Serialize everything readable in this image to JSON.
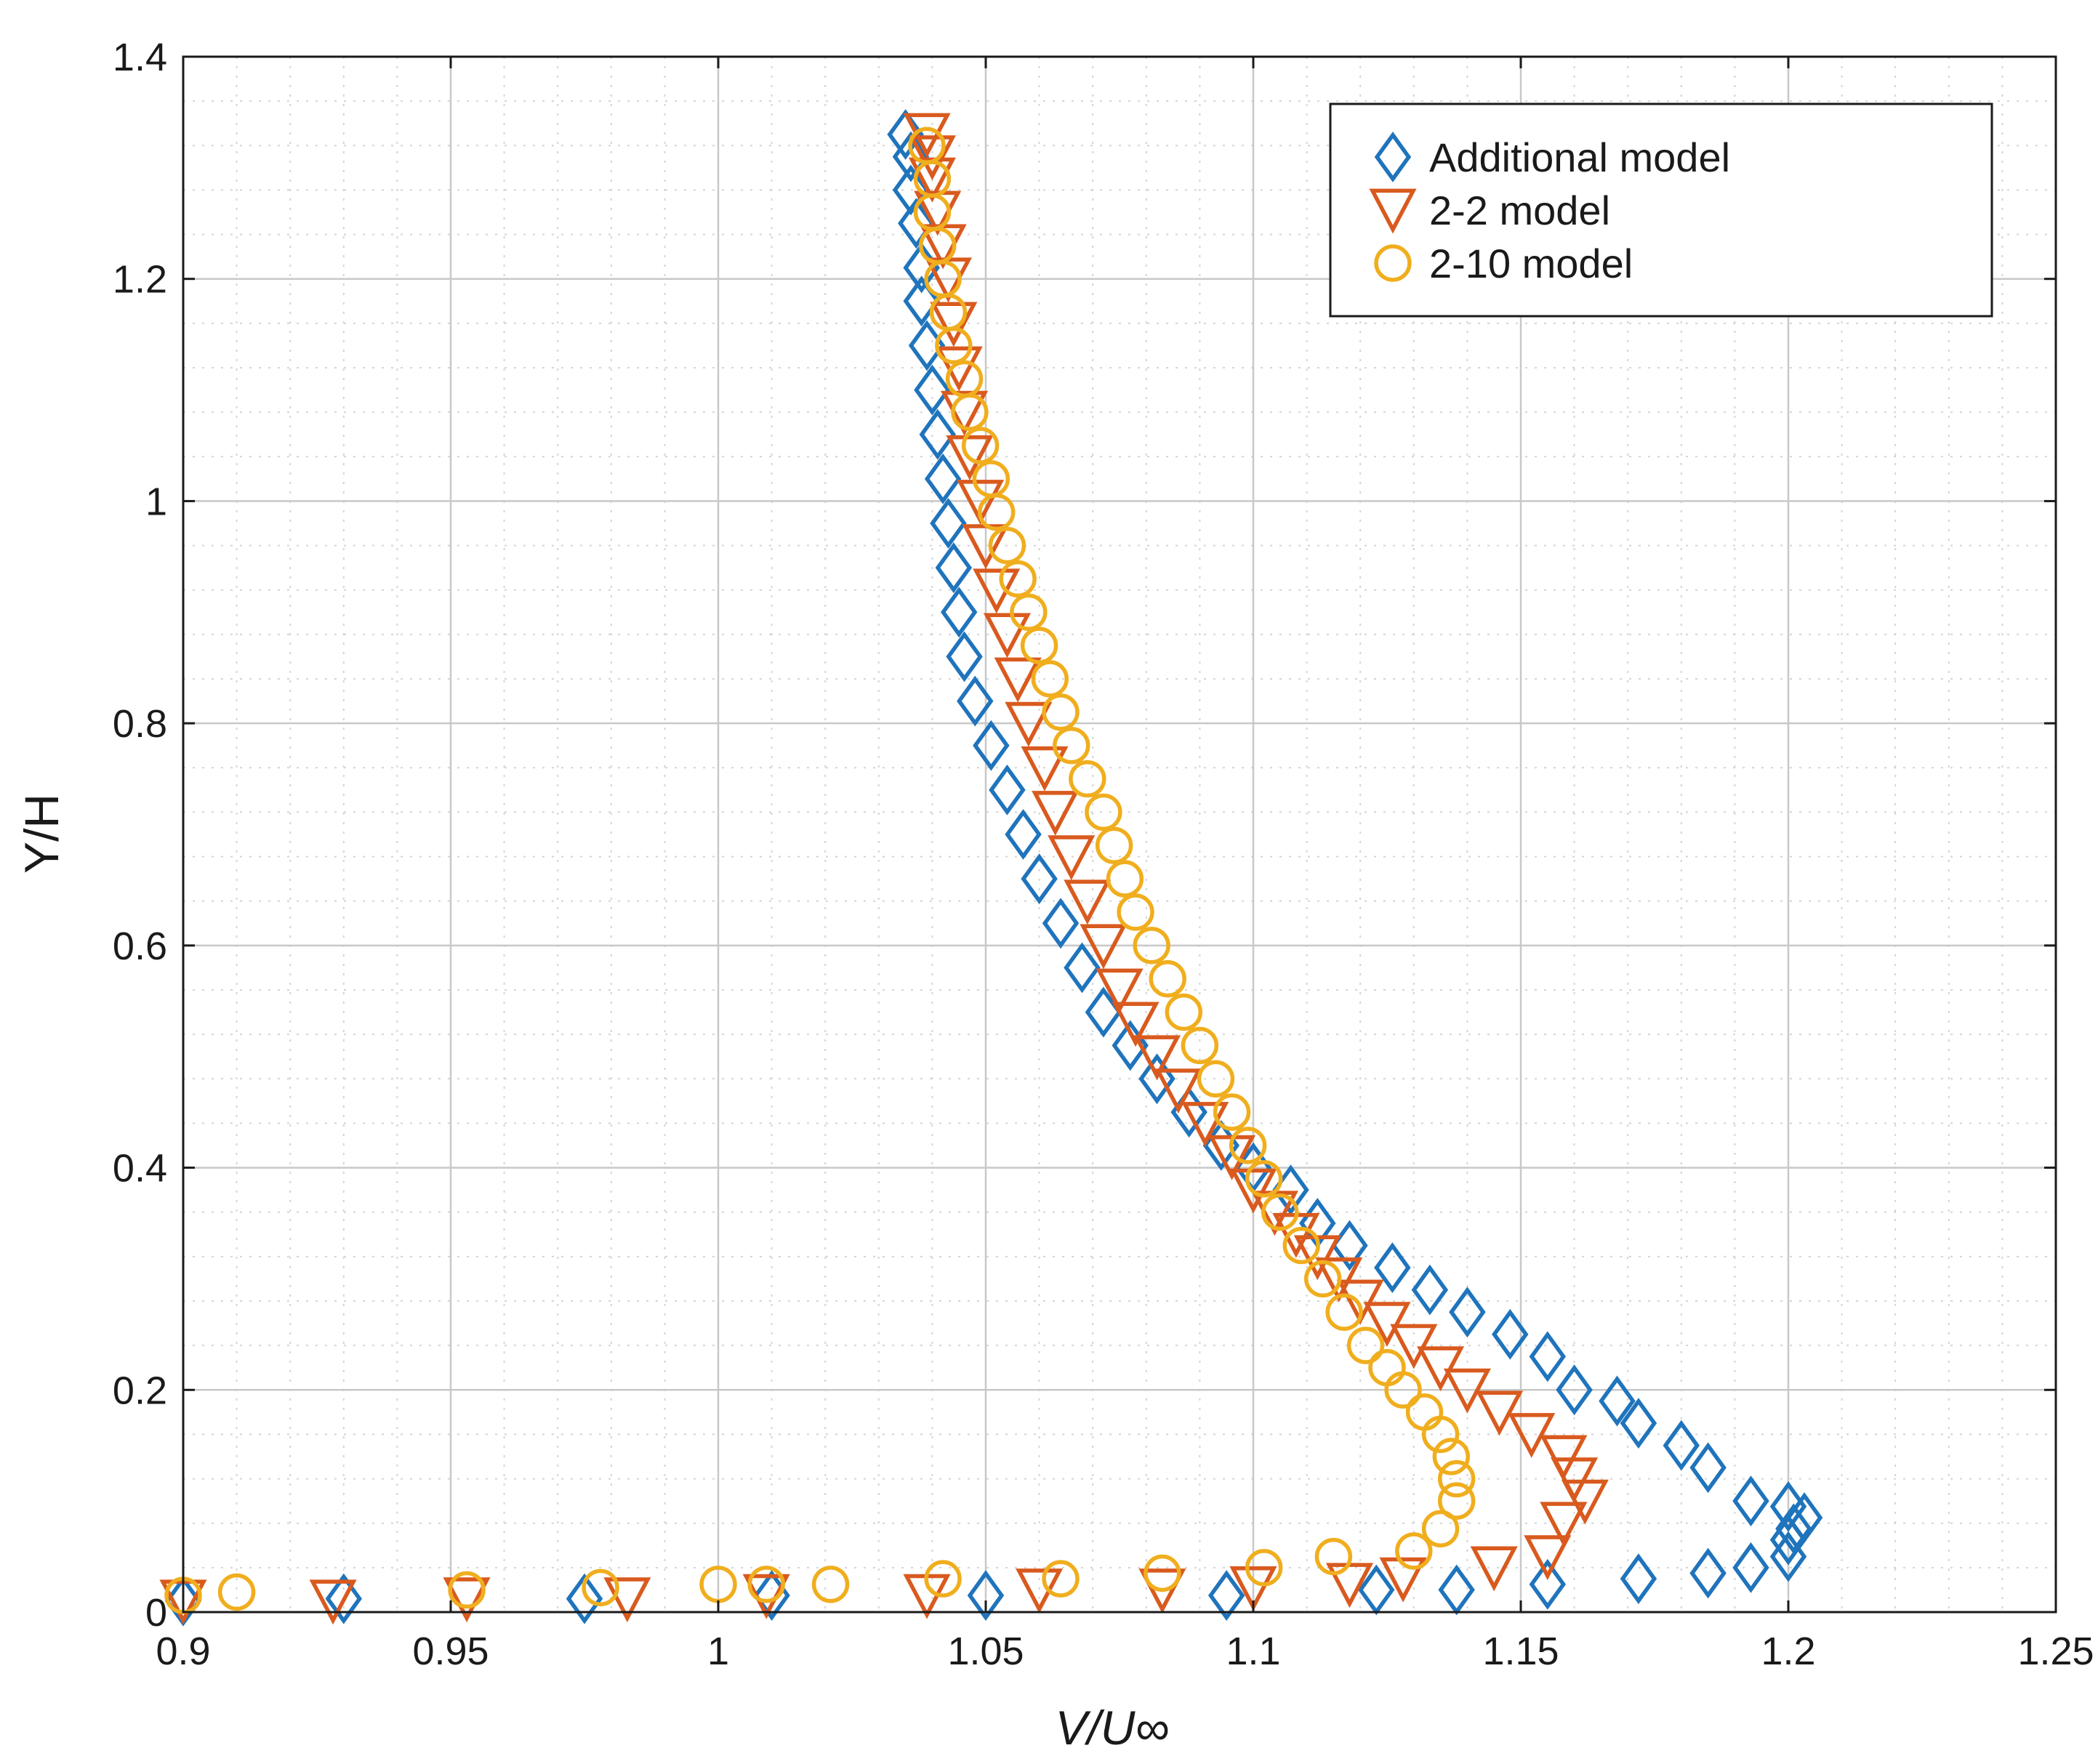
{
  "chart_data": {
    "type": "scatter",
    "title": "",
    "xlabel": "V/U∞",
    "ylabel": "Y/H",
    "xlim": [
      0.9,
      1.25
    ],
    "ylim": [
      0,
      1.4
    ],
    "xticks": [
      0.9,
      0.95,
      1,
      1.05,
      1.1,
      1.15,
      1.2,
      1.25
    ],
    "xtick_labels": [
      "0.9",
      "0.95",
      "1",
      "1.05",
      "1.1",
      "1.15",
      "1.2",
      "1.25"
    ],
    "yticks": [
      0,
      0.2,
      0.4,
      0.6,
      0.8,
      1,
      1.2,
      1.4
    ],
    "ytick_labels": [
      "0",
      "0.2",
      "0.4",
      "0.6",
      "0.8",
      "1",
      "1.2",
      "1.4"
    ],
    "grid": true,
    "legend_position": "top-right",
    "series": [
      {
        "name": "Additional model",
        "marker": "diamond",
        "color": "#1f74bc",
        "x": [
          0.9,
          0.93,
          0.975,
          1.01,
          1.05,
          1.095,
          1.123,
          1.138,
          1.155,
          1.172,
          1.185,
          1.193,
          1.2,
          1.2,
          1.201,
          1.203,
          1.2,
          1.193,
          1.185,
          1.18,
          1.172,
          1.168,
          1.16,
          1.155,
          1.148,
          1.14,
          1.133,
          1.126,
          1.118,
          1.112,
          1.107,
          1.1,
          1.094,
          1.088,
          1.082,
          1.077,
          1.072,
          1.068,
          1.064,
          1.06,
          1.057,
          1.054,
          1.051,
          1.048,
          1.046,
          1.045,
          1.044,
          1.043,
          1.042,
          1.041,
          1.04,
          1.039,
          1.038,
          1.038,
          1.037,
          1.036,
          1.036,
          1.035
        ],
        "y": [
          0.01,
          0.012,
          0.012,
          0.015,
          0.015,
          0.015,
          0.02,
          0.02,
          0.025,
          0.03,
          0.035,
          0.04,
          0.05,
          0.065,
          0.075,
          0.085,
          0.095,
          0.1,
          0.13,
          0.15,
          0.17,
          0.19,
          0.2,
          0.23,
          0.25,
          0.27,
          0.29,
          0.31,
          0.33,
          0.35,
          0.38,
          0.4,
          0.42,
          0.45,
          0.48,
          0.51,
          0.54,
          0.58,
          0.62,
          0.66,
          0.7,
          0.74,
          0.78,
          0.82,
          0.86,
          0.9,
          0.94,
          0.98,
          1.02,
          1.06,
          1.1,
          1.14,
          1.18,
          1.21,
          1.25,
          1.28,
          1.31,
          1.33
        ]
      },
      {
        "name": "2-2 model",
        "marker": "triangle-down",
        "color": "#d95a1e",
        "x": [
          0.9,
          0.928,
          0.953,
          0.983,
          1.009,
          1.039,
          1.06,
          1.083,
          1.1,
          1.118,
          1.128,
          1.145,
          1.155,
          1.158,
          1.162,
          1.16,
          1.158,
          1.152,
          1.146,
          1.14,
          1.135,
          1.13,
          1.125,
          1.12,
          1.116,
          1.112,
          1.108,
          1.104,
          1.1,
          1.096,
          1.091,
          1.086,
          1.082,
          1.078,
          1.075,
          1.072,
          1.069,
          1.066,
          1.063,
          1.061,
          1.058,
          1.056,
          1.054,
          1.052,
          1.05,
          1.049,
          1.047,
          1.046,
          1.045,
          1.044,
          1.043,
          1.042,
          1.041,
          1.04,
          1.04,
          1.039
        ],
        "y": [
          0.01,
          0.01,
          0.012,
          0.012,
          0.015,
          0.015,
          0.02,
          0.02,
          0.022,
          0.025,
          0.03,
          0.04,
          0.05,
          0.08,
          0.1,
          0.12,
          0.14,
          0.16,
          0.18,
          0.2,
          0.22,
          0.24,
          0.26,
          0.28,
          0.3,
          0.32,
          0.34,
          0.36,
          0.38,
          0.41,
          0.44,
          0.47,
          0.5,
          0.53,
          0.56,
          0.6,
          0.64,
          0.68,
          0.72,
          0.76,
          0.8,
          0.84,
          0.88,
          0.92,
          0.96,
          1.0,
          1.04,
          1.08,
          1.12,
          1.16,
          1.2,
          1.23,
          1.26,
          1.29,
          1.31,
          1.33
        ]
      },
      {
        "name": "2-10 model",
        "marker": "circle",
        "color": "#f0ae1e",
        "x": [
          0.9,
          0.91,
          0.953,
          0.978,
          1.0,
          1.009,
          1.021,
          1.042,
          1.064,
          1.083,
          1.102,
          1.115,
          1.13,
          1.135,
          1.138,
          1.138,
          1.137,
          1.135,
          1.132,
          1.128,
          1.125,
          1.121,
          1.117,
          1.113,
          1.109,
          1.105,
          1.102,
          1.099,
          1.096,
          1.093,
          1.09,
          1.087,
          1.084,
          1.081,
          1.078,
          1.076,
          1.074,
          1.072,
          1.069,
          1.066,
          1.064,
          1.062,
          1.06,
          1.058,
          1.056,
          1.054,
          1.052,
          1.051,
          1.049,
          1.047,
          1.046,
          1.044,
          1.043,
          1.042,
          1.041,
          1.04,
          1.04,
          1.039
        ],
        "y": [
          0.015,
          0.018,
          0.02,
          0.022,
          0.025,
          0.025,
          0.025,
          0.03,
          0.03,
          0.035,
          0.04,
          0.05,
          0.055,
          0.075,
          0.1,
          0.12,
          0.14,
          0.16,
          0.18,
          0.2,
          0.22,
          0.24,
          0.27,
          0.3,
          0.33,
          0.36,
          0.39,
          0.42,
          0.45,
          0.48,
          0.51,
          0.54,
          0.57,
          0.6,
          0.63,
          0.66,
          0.69,
          0.72,
          0.75,
          0.78,
          0.81,
          0.84,
          0.87,
          0.9,
          0.93,
          0.96,
          0.99,
          1.02,
          1.05,
          1.08,
          1.11,
          1.14,
          1.17,
          1.2,
          1.23,
          1.26,
          1.29,
          1.32
        ]
      }
    ]
  }
}
